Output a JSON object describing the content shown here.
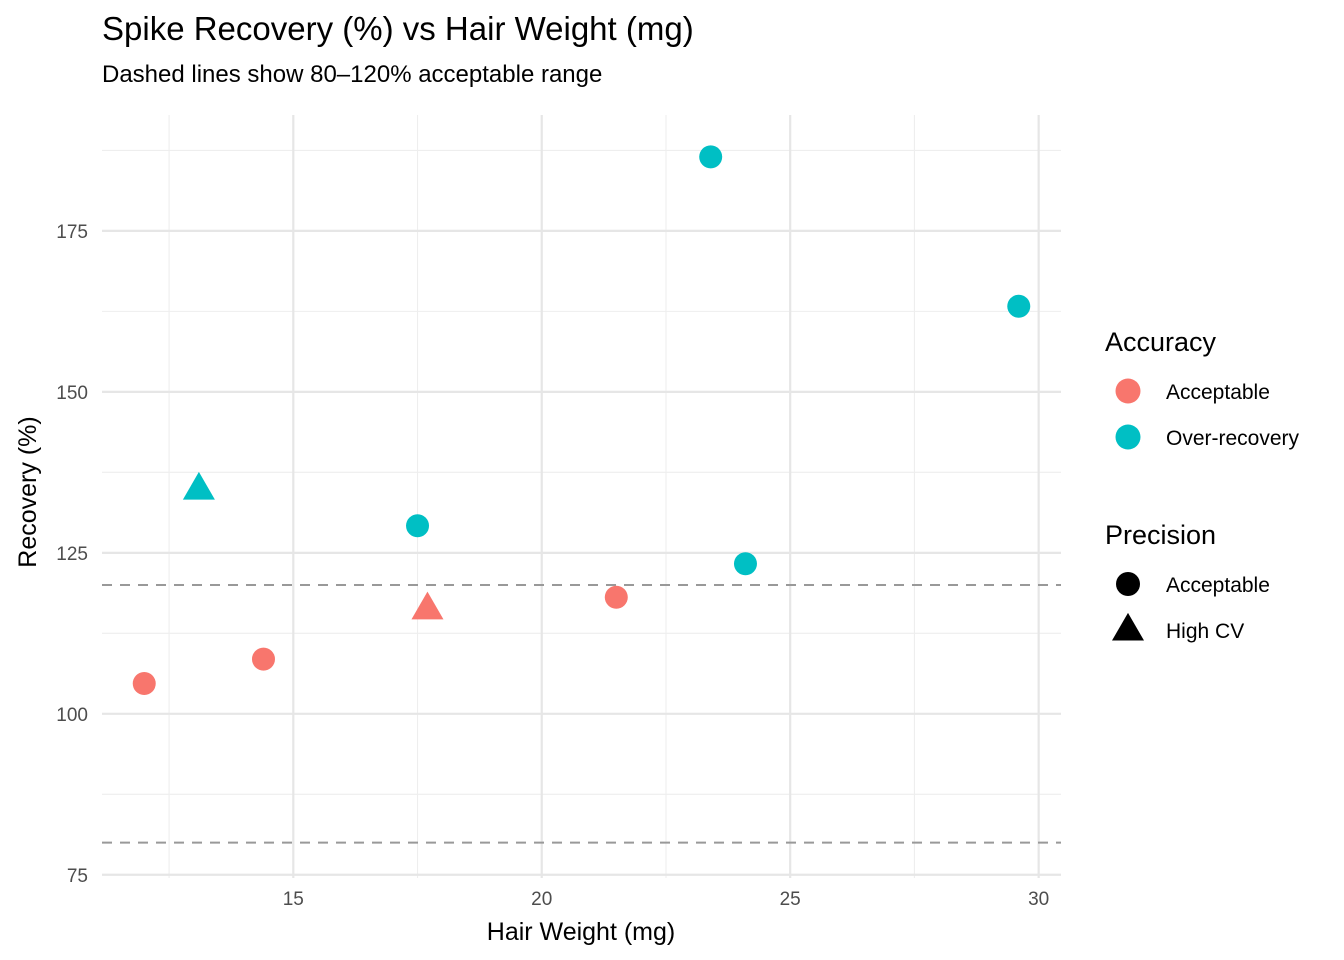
{
  "chart_data": {
    "type": "scatter",
    "title": "Spike Recovery (%) vs Hair Weight (mg)",
    "subtitle": "Dashed lines show 80–120% acceptable range",
    "xlabel": "Hair Weight (mg)",
    "ylabel": "Recovery (%)",
    "xlim": [
      11.15,
      30.45
    ],
    "ylim": [
      74.5,
      193
    ],
    "x_ticks": [
      15,
      20,
      25,
      30
    ],
    "y_ticks": [
      75,
      100,
      125,
      150,
      175
    ],
    "grid": true,
    "reference_lines": [
      80,
      120
    ],
    "legend_placement": "right",
    "colors": {
      "Acceptable": "#F8766D",
      "Over-recovery": "#00BFC4"
    },
    "legends": [
      {
        "title": "Accuracy",
        "kind": "color",
        "entries": [
          "Acceptable",
          "Over-recovery"
        ]
      },
      {
        "title": "Precision",
        "kind": "shape",
        "entries": [
          "Acceptable",
          "High CV"
        ],
        "shapes": [
          "circle",
          "triangle"
        ]
      }
    ],
    "points": [
      {
        "x": 12.0,
        "y": 104.7,
        "accuracy": "Acceptable",
        "precision": "Acceptable"
      },
      {
        "x": 13.1,
        "y": 134.9,
        "accuracy": "Over-recovery",
        "precision": "High CV"
      },
      {
        "x": 14.4,
        "y": 108.5,
        "accuracy": "Acceptable",
        "precision": "Acceptable"
      },
      {
        "x": 17.5,
        "y": 129.2,
        "accuracy": "Over-recovery",
        "precision": "Acceptable"
      },
      {
        "x": 17.7,
        "y": 116.3,
        "accuracy": "Acceptable",
        "precision": "High CV"
      },
      {
        "x": 21.5,
        "y": 118.1,
        "accuracy": "Acceptable",
        "precision": "Acceptable"
      },
      {
        "x": 23.4,
        "y": 186.5,
        "accuracy": "Over-recovery",
        "precision": "Acceptable"
      },
      {
        "x": 24.1,
        "y": 123.3,
        "accuracy": "Over-recovery",
        "precision": "Acceptable"
      },
      {
        "x": 29.6,
        "y": 163.3,
        "accuracy": "Over-recovery",
        "precision": "Acceptable"
      }
    ]
  }
}
